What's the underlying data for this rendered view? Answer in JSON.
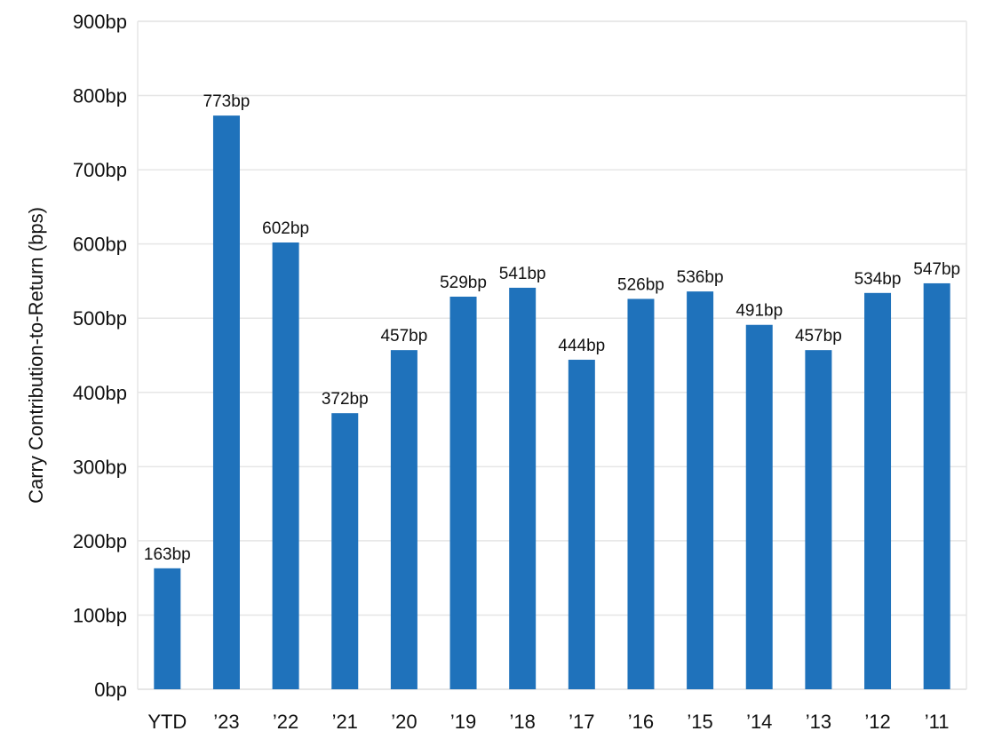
{
  "chart_data": {
    "type": "bar",
    "title": "",
    "xlabel": "",
    "ylabel": "Carry Contribution-to-Return (bps)",
    "categories": [
      "YTD",
      "’23",
      "’22",
      "’21",
      "’20",
      "’19",
      "’18",
      "’17",
      "’16",
      "’15",
      "’14",
      "’13",
      "’12",
      "’11"
    ],
    "values": [
      163,
      773,
      602,
      372,
      457,
      529,
      541,
      444,
      526,
      536,
      491,
      457,
      534,
      547
    ],
    "data_labels": [
      "163bp",
      "773bp",
      "602bp",
      "372bp",
      "457bp",
      "529bp",
      "541bp",
      "444bp",
      "526bp",
      "536bp",
      "491bp",
      "457bp",
      "534bp",
      "547bp"
    ],
    "ylim": [
      0,
      900
    ],
    "y_ticks": [
      0,
      100,
      200,
      300,
      400,
      500,
      600,
      700,
      800,
      900
    ],
    "y_tick_labels": [
      "0bp",
      "100bp",
      "200bp",
      "300bp",
      "400bp",
      "500bp",
      "600bp",
      "700bp",
      "800bp",
      "900bp"
    ],
    "grid": true,
    "legend": "none",
    "bar_color": "#1f72bb",
    "grid_color": "#e6e6e6"
  }
}
